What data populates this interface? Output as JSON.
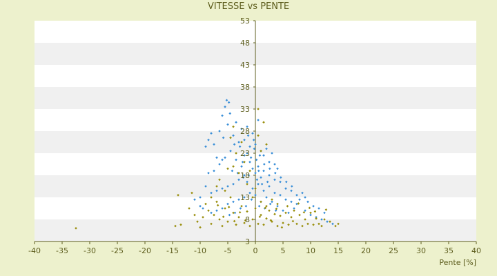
{
  "chart_data": {
    "type": "scatter",
    "title": "VITESSE vs PENTE",
    "xlabel": "Pente [%]",
    "ylabel": "",
    "xlim": [
      -40,
      40
    ],
    "ylim": [
      3,
      53
    ],
    "xticks": [
      -40,
      -35,
      -30,
      -25,
      -20,
      -15,
      -10,
      -5,
      0,
      5,
      10,
      15,
      20,
      25,
      30,
      35,
      40
    ],
    "yticks": [
      3,
      8,
      13,
      18,
      23,
      28,
      33,
      38,
      43,
      48,
      53
    ],
    "grid": "alternating horizontal bands",
    "legend": "none",
    "colors": {
      "background": "#edf1cd",
      "plot_band_light": "#ffffff",
      "plot_band_dark": "#f0f0f0",
      "axis": "#5c5c1c",
      "text": "#5c5c1c"
    },
    "series": [
      {
        "color": "#3a8fd8",
        "points": [
          [
            -6.0,
            31.5
          ],
          [
            -5.5,
            33.5
          ],
          [
            -5.2,
            35.0
          ],
          [
            -4.8,
            34.5
          ],
          [
            -4.6,
            32.0
          ],
          [
            -8.5,
            26.0
          ],
          [
            -8.0,
            27.5
          ],
          [
            -7.5,
            25.0
          ],
          [
            -9.0,
            24.5
          ],
          [
            -7.0,
            22.0
          ],
          [
            -6.5,
            28.0
          ],
          [
            -5.8,
            26.5
          ],
          [
            -5.0,
            29.5
          ],
          [
            -4.0,
            27.0
          ],
          [
            -3.5,
            30.0
          ],
          [
            -3.0,
            25.5
          ],
          [
            -2.5,
            28.5
          ],
          [
            -2.0,
            26.0
          ],
          [
            -1.5,
            29.0
          ],
          [
            -1.0,
            24.5
          ],
          [
            -0.5,
            27.5
          ],
          [
            0.0,
            25.0
          ],
          [
            0.5,
            30.5
          ],
          [
            1.0,
            23.5
          ],
          [
            1.5,
            22.5
          ],
          [
            2.0,
            24.0
          ],
          [
            2.5,
            21.0
          ],
          [
            3.0,
            23.0
          ],
          [
            3.5,
            20.5
          ],
          [
            4.0,
            19.5
          ],
          [
            -1.0,
            21.0
          ],
          [
            -0.5,
            19.5
          ],
          [
            0.0,
            18.5
          ],
          [
            0.5,
            20.0
          ],
          [
            1.0,
            17.5
          ],
          [
            -2.0,
            18.0
          ],
          [
            -3.0,
            17.0
          ],
          [
            -4.0,
            16.0
          ],
          [
            -5.0,
            15.5
          ],
          [
            -6.0,
            15.0
          ],
          [
            -7.0,
            14.5
          ],
          [
            -8.0,
            14.0
          ],
          [
            -9.0,
            15.5
          ],
          [
            -10.0,
            13.0
          ],
          [
            -8.5,
            18.5
          ],
          [
            -7.5,
            19.0
          ],
          [
            -6.5,
            20.5
          ],
          [
            -6.0,
            21.5
          ],
          [
            -5.5,
            22.0
          ],
          [
            -4.5,
            23.5
          ],
          [
            -1.5,
            16.5
          ],
          [
            -0.5,
            15.0
          ],
          [
            0.5,
            16.0
          ],
          [
            1.5,
            14.5
          ],
          [
            2.5,
            15.5
          ],
          [
            3.5,
            14.0
          ],
          [
            4.5,
            13.5
          ],
          [
            5.5,
            12.5
          ],
          [
            6.5,
            12.0
          ],
          [
            7.5,
            11.5
          ],
          [
            8.0,
            12.5
          ],
          [
            7.0,
            10.5
          ],
          [
            6.0,
            9.5
          ],
          [
            5.0,
            10.0
          ],
          [
            4.0,
            11.0
          ],
          [
            3.0,
            12.0
          ],
          [
            2.0,
            13.0
          ],
          [
            1.0,
            12.0
          ],
          [
            0.0,
            13.5
          ],
          [
            -1.0,
            14.0
          ],
          [
            -2.0,
            13.0
          ],
          [
            -3.0,
            12.5
          ],
          [
            -4.0,
            12.0
          ],
          [
            -5.0,
            11.5
          ],
          [
            -6.0,
            10.5
          ],
          [
            -7.0,
            10.0
          ],
          [
            -8.0,
            9.5
          ],
          [
            -9.5,
            10.5
          ],
          [
            -10.0,
            11.0
          ],
          [
            -11.0,
            12.5
          ],
          [
            9.0,
            10.0
          ],
          [
            10.0,
            9.0
          ],
          [
            11.0,
            8.5
          ],
          [
            12.0,
            8.0
          ],
          [
            13.0,
            7.5
          ],
          [
            8.5,
            14.0
          ],
          [
            9.0,
            13.0
          ],
          [
            7.5,
            13.5
          ],
          [
            6.5,
            14.5
          ],
          [
            5.5,
            15.0
          ],
          [
            4.5,
            16.5
          ],
          [
            3.5,
            17.0
          ],
          [
            2.5,
            18.0
          ],
          [
            1.5,
            19.0
          ],
          [
            -2.5,
            20.0
          ],
          [
            -3.5,
            21.5
          ],
          [
            -2.0,
            22.5
          ],
          [
            -1.5,
            23.0
          ],
          [
            -0.8,
            22.0
          ],
          [
            0.2,
            21.5
          ],
          [
            0.8,
            22.5
          ],
          [
            -0.2,
            24.0
          ],
          [
            -2.8,
            24.5
          ],
          [
            -3.8,
            25.0
          ],
          [
            -4.2,
            19.0
          ],
          [
            -3.2,
            18.5
          ],
          [
            -2.2,
            17.5
          ],
          [
            -1.2,
            18.0
          ],
          [
            0.3,
            17.0
          ],
          [
            1.2,
            16.0
          ],
          [
            2.2,
            16.5
          ],
          [
            -0.7,
            12.5
          ],
          [
            0.7,
            11.0
          ],
          [
            1.7,
            10.5
          ],
          [
            2.7,
            11.5
          ],
          [
            3.7,
            10.0
          ],
          [
            -1.7,
            11.0
          ],
          [
            -2.7,
            10.5
          ],
          [
            -3.7,
            9.5
          ],
          [
            -4.7,
            9.0
          ],
          [
            14.0,
            7.0
          ],
          [
            12.5,
            9.5
          ],
          [
            11.5,
            10.5
          ],
          [
            10.5,
            11.0
          ],
          [
            9.5,
            12.0
          ],
          [
            -0.3,
            26.0
          ],
          [
            -1.3,
            27.0
          ],
          [
            -2.3,
            21.0
          ],
          [
            0.6,
            19.0
          ],
          [
            1.6,
            20.5
          ],
          [
            2.6,
            19.5
          ],
          [
            3.6,
            18.5
          ],
          [
            4.6,
            17.5
          ],
          [
            5.6,
            16.5
          ],
          [
            6.6,
            15.5
          ]
        ]
      },
      {
        "color": "#9a8f0e",
        "points": [
          [
            -32.5,
            6.0
          ],
          [
            -14.5,
            6.5
          ],
          [
            -13.5,
            6.8
          ],
          [
            -14.0,
            13.5
          ],
          [
            -11.5,
            14.0
          ],
          [
            -12.0,
            10.5
          ],
          [
            -11.0,
            9.0
          ],
          [
            -10.5,
            7.5
          ],
          [
            -10.0,
            6.2
          ],
          [
            -9.5,
            8.5
          ],
          [
            -9.0,
            11.5
          ],
          [
            -8.5,
            10.0
          ],
          [
            -8.0,
            7.0
          ],
          [
            -7.5,
            9.0
          ],
          [
            -7.0,
            12.0
          ],
          [
            -6.5,
            8.0
          ],
          [
            -6.0,
            6.5
          ],
          [
            -5.5,
            10.5
          ],
          [
            -5.0,
            7.5
          ],
          [
            -4.5,
            13.0
          ],
          [
            -4.0,
            9.5
          ],
          [
            -3.5,
            6.8
          ],
          [
            -3.0,
            8.5
          ],
          [
            -2.5,
            11.0
          ],
          [
            -2.0,
            7.2
          ],
          [
            -1.5,
            9.8
          ],
          [
            -1.0,
            6.5
          ],
          [
            -0.5,
            8.0
          ],
          [
            0.0,
            10.5
          ],
          [
            0.5,
            7.0
          ],
          [
            1.0,
            9.0
          ],
          [
            1.5,
            6.8
          ],
          [
            2.0,
            8.2
          ],
          [
            2.5,
            10.0
          ],
          [
            3.0,
            7.5
          ],
          [
            3.5,
            9.2
          ],
          [
            4.0,
            6.5
          ],
          [
            4.5,
            8.8
          ],
          [
            5.0,
            7.2
          ],
          [
            5.5,
            9.5
          ],
          [
            6.0,
            6.8
          ],
          [
            6.5,
            8.5
          ],
          [
            7.0,
            10.0
          ],
          [
            7.5,
            7.0
          ],
          [
            8.0,
            9.0
          ],
          [
            8.5,
            6.5
          ],
          [
            9.0,
            8.0
          ],
          [
            9.5,
            7.0
          ],
          [
            10.0,
            9.5
          ],
          [
            10.5,
            6.8
          ],
          [
            11.0,
            8.2
          ],
          [
            11.5,
            7.0
          ],
          [
            12.0,
            6.5
          ],
          [
            12.5,
            8.0
          ],
          [
            13.5,
            7.5
          ],
          [
            14.5,
            6.5
          ],
          [
            15.0,
            7.0
          ],
          [
            -1.5,
            16.0
          ],
          [
            -3.0,
            18.5
          ],
          [
            -2.0,
            21.0
          ],
          [
            -4.0,
            20.0
          ],
          [
            -3.5,
            23.0
          ],
          [
            -2.5,
            25.5
          ],
          [
            -4.5,
            26.5
          ],
          [
            -4.0,
            29.0
          ],
          [
            0.5,
            27.0
          ],
          [
            1.0,
            23.5
          ],
          [
            2.0,
            25.0
          ],
          [
            -1.0,
            19.0
          ],
          [
            0.0,
            15.0
          ],
          [
            -0.5,
            13.0
          ],
          [
            1.0,
            12.0
          ],
          [
            2.0,
            11.0
          ],
          [
            3.0,
            12.5
          ],
          [
            4.0,
            11.5
          ],
          [
            -7.0,
            15.5
          ],
          [
            -8.0,
            13.0
          ],
          [
            -5.5,
            14.5
          ],
          [
            -6.5,
            17.0
          ],
          [
            -5.0,
            19.5
          ],
          [
            0.5,
            33.0
          ],
          [
            1.5,
            30.0
          ],
          [
            -1.8,
            7.8
          ],
          [
            -2.8,
            9.6
          ],
          [
            -3.8,
            7.6
          ],
          [
            -4.8,
            10.8
          ],
          [
            -5.8,
            8.6
          ],
          [
            -6.8,
            11.2
          ],
          [
            0.8,
            8.6
          ],
          [
            1.8,
            10.6
          ],
          [
            2.8,
            7.8
          ],
          [
            3.8,
            10.4
          ],
          [
            4.8,
            6.2
          ],
          [
            5.8,
            11.0
          ],
          [
            6.8,
            7.6
          ],
          [
            7.8,
            11.6
          ],
          [
            8.8,
            9.6
          ],
          [
            9.8,
            10.6
          ],
          [
            10.8,
            9.8
          ],
          [
            12.8,
            10.2
          ]
        ]
      }
    ]
  }
}
